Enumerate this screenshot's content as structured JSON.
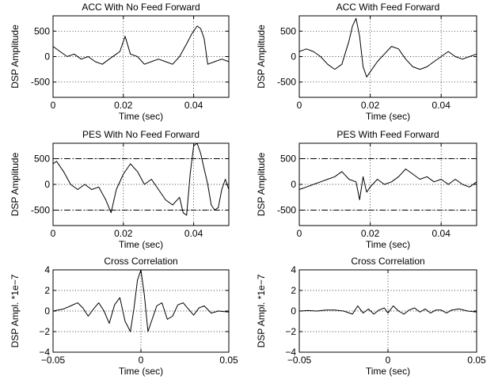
{
  "chart_data": [
    {
      "type": "line",
      "title": "ACC With No Feed Forward",
      "xlabel": "Time (sec)",
      "ylabel": "DSP Amplitude",
      "xlim": [
        0,
        0.05
      ],
      "ylim": [
        -800,
        800
      ],
      "xticks": [
        0,
        0.02,
        0.04
      ],
      "yticks": [
        -500,
        0,
        500
      ],
      "xtick_labels": [
        "0",
        "0.02",
        "0.04"
      ],
      "ytick_labels": [
        "-500",
        "0",
        "500"
      ],
      "grid": true,
      "series": [
        {
          "x": [
            0,
            0.002,
            0.004,
            0.006,
            0.008,
            0.01,
            0.012,
            0.014,
            0.016,
            0.018,
            0.019,
            0.0205,
            0.022,
            0.024,
            0.026,
            0.028,
            0.03,
            0.032,
            0.034,
            0.036,
            0.038,
            0.0395,
            0.041,
            0.042,
            0.043,
            0.044,
            0.046,
            0.048,
            0.05
          ],
          "y": [
            200,
            100,
            0,
            50,
            -50,
            0,
            -100,
            -150,
            -50,
            50,
            100,
            400,
            50,
            0,
            -150,
            -100,
            -50,
            -100,
            -150,
            0,
            250,
            450,
            600,
            550,
            350,
            -150,
            -100,
            -50,
            -100
          ]
        }
      ]
    },
    {
      "type": "line",
      "title": "ACC With Feed Forward",
      "xlabel": "Time (sec)",
      "ylabel": "DSP Amplitude",
      "xlim": [
        0,
        0.05
      ],
      "ylim": [
        -800,
        800
      ],
      "xticks": [
        0,
        0.02,
        0.04
      ],
      "yticks": [
        -500,
        0,
        500
      ],
      "xtick_labels": [
        "0",
        "0.02",
        "0.04"
      ],
      "ytick_labels": [
        "-500",
        "0",
        "500"
      ],
      "grid": true,
      "series": [
        {
          "x": [
            0,
            0.002,
            0.004,
            0.006,
            0.008,
            0.01,
            0.012,
            0.014,
            0.015,
            0.016,
            0.017,
            0.018,
            0.019,
            0.02,
            0.022,
            0.024,
            0.026,
            0.028,
            0.03,
            0.032,
            0.034,
            0.036,
            0.038,
            0.04,
            0.042,
            0.044,
            0.046,
            0.048,
            0.05
          ],
          "y": [
            100,
            150,
            100,
            0,
            -150,
            -250,
            -150,
            300,
            600,
            750,
            400,
            -200,
            -400,
            -300,
            -100,
            50,
            200,
            150,
            -50,
            -200,
            -250,
            -200,
            -100,
            0,
            100,
            0,
            -50,
            0,
            50
          ]
        }
      ]
    },
    {
      "type": "line",
      "title": "PES With No Feed Forward",
      "xlabel": "Time (sec)",
      "ylabel": "DSP Amplitude",
      "xlim": [
        0,
        0.05
      ],
      "ylim": [
        -800,
        800
      ],
      "xticks": [
        0,
        0.02,
        0.04
      ],
      "yticks": [
        -500,
        0,
        500
      ],
      "xtick_labels": [
        "0",
        "0.02",
        "0.04"
      ],
      "ytick_labels": [
        "-500",
        "0",
        "500"
      ],
      "grid": true,
      "limit_lines": [
        500,
        -500
      ],
      "series": [
        {
          "x": [
            0,
            0.001,
            0.003,
            0.005,
            0.007,
            0.009,
            0.011,
            0.013,
            0.015,
            0.0165,
            0.018,
            0.02,
            0.022,
            0.024,
            0.026,
            0.028,
            0.03,
            0.032,
            0.034,
            0.036,
            0.037,
            0.038,
            0.039,
            0.04,
            0.041,
            0.042,
            0.043,
            0.044,
            0.045,
            0.046,
            0.047,
            0.048,
            0.049,
            0.05
          ],
          "y": [
            400,
            450,
            250,
            0,
            -100,
            0,
            -100,
            -50,
            -300,
            -550,
            -100,
            200,
            400,
            250,
            0,
            100,
            -100,
            -300,
            -400,
            -250,
            -550,
            -600,
            200,
            750,
            800,
            600,
            300,
            0,
            -400,
            -500,
            -450,
            -100,
            100,
            -100
          ]
        }
      ]
    },
    {
      "type": "line",
      "title": "PES With Feed Forward",
      "xlabel": "Time (sec)",
      "ylabel": "DSP Amplitude",
      "xlim": [
        0,
        0.05
      ],
      "ylim": [
        -800,
        800
      ],
      "xticks": [
        0,
        0.02,
        0.04
      ],
      "yticks": [
        -500,
        0,
        500
      ],
      "xtick_labels": [
        "0",
        "0.02",
        "0.04"
      ],
      "ytick_labels": [
        "-500",
        "0",
        "500"
      ],
      "grid": true,
      "limit_lines": [
        500,
        -500
      ],
      "series": [
        {
          "x": [
            0,
            0.002,
            0.004,
            0.006,
            0.008,
            0.01,
            0.012,
            0.014,
            0.016,
            0.017,
            0.018,
            0.019,
            0.02,
            0.022,
            0.024,
            0.026,
            0.028,
            0.03,
            0.032,
            0.034,
            0.036,
            0.038,
            0.04,
            0.042,
            0.044,
            0.046,
            0.048,
            0.05
          ],
          "y": [
            -100,
            -50,
            0,
            50,
            100,
            150,
            250,
            100,
            50,
            -300,
            150,
            -150,
            -50,
            100,
            0,
            50,
            150,
            300,
            200,
            100,
            150,
            50,
            100,
            0,
            100,
            0,
            -50,
            50
          ]
        }
      ]
    },
    {
      "type": "line",
      "title": "Cross Correlation",
      "xlabel": "Time (sec)",
      "ylabel": "DSP Ampl. *1e−7",
      "xlim": [
        -0.05,
        0.05
      ],
      "ylim": [
        -4,
        4
      ],
      "xticks": [
        -0.05,
        0,
        0.05
      ],
      "yticks": [
        -4,
        -2,
        0,
        2,
        4
      ],
      "xtick_labels": [
        "−0.05",
        "0",
        "0.05"
      ],
      "ytick_labels": [
        "−4",
        "−2",
        "0",
        "2",
        "4"
      ],
      "grid": true,
      "series": [
        {
          "x": [
            -0.05,
            -0.044,
            -0.04,
            -0.036,
            -0.033,
            -0.03,
            -0.027,
            -0.024,
            -0.021,
            -0.018,
            -0.015,
            -0.012,
            -0.009,
            -0.006,
            -0.004,
            -0.002,
            0,
            0.002,
            0.004,
            0.006,
            0.009,
            0.012,
            0.015,
            0.018,
            0.021,
            0.024,
            0.027,
            0.03,
            0.033,
            0.036,
            0.04,
            0.044,
            0.05
          ],
          "y": [
            0,
            0.2,
            0.5,
            0.8,
            0.3,
            -0.5,
            0.2,
            0.8,
            0,
            -1.2,
            0.6,
            1.3,
            -1.0,
            -2.0,
            0.2,
            3.0,
            4.0,
            1.5,
            -2.0,
            -1.0,
            0.5,
            0.8,
            -0.8,
            -0.5,
            0.6,
            0.8,
            0.2,
            -0.4,
            0.3,
            0.5,
            -0.2,
            0,
            -0.1
          ]
        }
      ]
    },
    {
      "type": "line",
      "title": "Cross Correlation",
      "xlabel": "Time (sec)",
      "ylabel": "DSP Ampl. *1e−7",
      "xlim": [
        -0.05,
        0.05
      ],
      "ylim": [
        -4,
        4
      ],
      "xticks": [
        -0.05,
        0,
        0.05
      ],
      "yticks": [
        -4,
        -2,
        0,
        2,
        4
      ],
      "xtick_labels": [
        "−0.05",
        "0",
        "0.05"
      ],
      "ytick_labels": [
        "−4",
        "−2",
        "0",
        "2",
        "4"
      ],
      "grid": true,
      "series": [
        {
          "x": [
            -0.05,
            -0.045,
            -0.04,
            -0.035,
            -0.03,
            -0.025,
            -0.02,
            -0.017,
            -0.014,
            -0.011,
            -0.008,
            -0.005,
            -0.002,
            0,
            0.003,
            0.006,
            0.009,
            0.012,
            0.015,
            0.018,
            0.021,
            0.024,
            0.027,
            0.03,
            0.033,
            0.036,
            0.04,
            0.045,
            0.05
          ],
          "y": [
            0,
            0.05,
            0,
            0.1,
            0.1,
            0,
            -0.3,
            0.5,
            -0.2,
            0.2,
            -0.3,
            0.1,
            0.3,
            -0.2,
            0.5,
            0,
            -0.3,
            0.1,
            0.3,
            -0.1,
            0.2,
            -0.2,
            0.1,
            0.1,
            -0.2,
            0.1,
            0.2,
            0,
            -0.1
          ]
        }
      ]
    }
  ]
}
